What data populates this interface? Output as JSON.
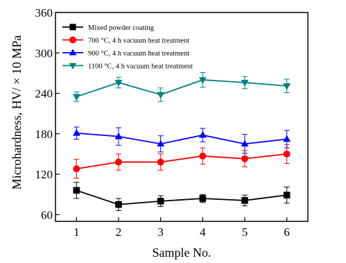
{
  "chart_data": {
    "type": "line",
    "xlabel": "Sample No.",
    "ylabel": "Microhardness, HV/ × 10 MPa",
    "x": [
      1,
      2,
      3,
      4,
      5,
      6
    ],
    "xlim": [
      0.5,
      6.5
    ],
    "ylim": [
      50,
      360
    ],
    "yticks": [
      60,
      120,
      180,
      240,
      300,
      360
    ],
    "grid": false,
    "legend_position": "top-left",
    "series": [
      {
        "name": "Mixed powder coating",
        "color": "#000000",
        "marker": "square",
        "values": [
          96,
          75,
          80,
          84,
          81,
          89
        ],
        "errors": [
          12,
          9,
          8,
          6,
          8,
          12
        ]
      },
      {
        "name": "700 °C, 4 h vacuum heat treatment",
        "color": "#ff0000",
        "marker": "circle",
        "values": [
          128,
          138,
          138,
          147,
          143,
          150
        ],
        "errors": [
          14,
          12,
          12,
          12,
          12,
          14
        ]
      },
      {
        "name": "900 °C, 4 h vacuum heat treatment",
        "color": "#0000ff",
        "marker": "triangle-up",
        "values": [
          181,
          176,
          165,
          178,
          165,
          172
        ],
        "errors": [
          9,
          13,
          12,
          10,
          14,
          13
        ]
      },
      {
        "name": "1100 °C, 4 h vacuum heat treatment",
        "color": "#008080",
        "marker": "triangle-down",
        "values": [
          235,
          256,
          238,
          260,
          256,
          251
        ],
        "errors": [
          7,
          8,
          10,
          11,
          9,
          10
        ]
      }
    ]
  }
}
